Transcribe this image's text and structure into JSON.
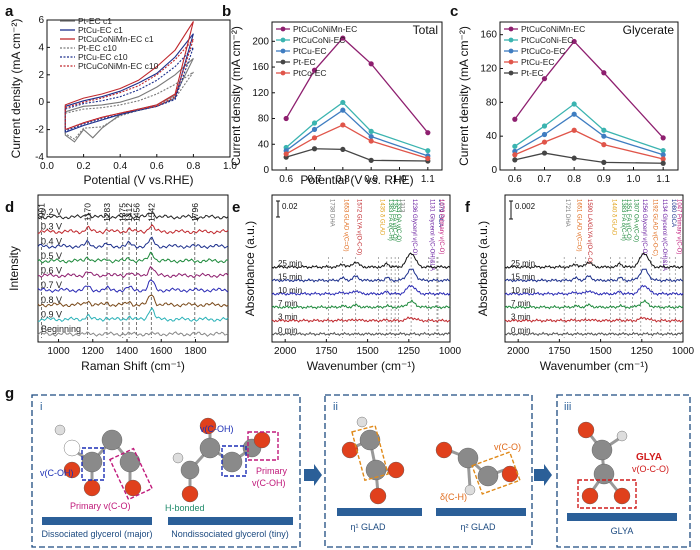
{
  "panel_letters": [
    "a",
    "b",
    "c",
    "d",
    "e",
    "f",
    "g"
  ],
  "chart_data": [
    {
      "panel": "a",
      "type": "line",
      "xlabel": "Potential (V vs.RHE)",
      "ylabel": "Current density (mA cm⁻²)",
      "xticks": [
        "0.0",
        "0.2",
        "0.4",
        "0.6",
        "0.8",
        "1.0"
      ],
      "yticks": [
        "-4",
        "-2",
        "0",
        "2",
        "4",
        "6"
      ],
      "xlim": [
        0.0,
        1.0
      ],
      "ylim": [
        -4,
        6
      ],
      "legend_position": "top-left",
      "series": [
        {
          "name": "Pt-EC c1",
          "color": "#7a7a7a",
          "dashed": false,
          "upper": [
            [
              0.1,
              -0.7
            ],
            [
              0.2,
              -0.3
            ],
            [
              0.3,
              -0.2
            ],
            [
              0.4,
              0.0
            ],
            [
              0.5,
              0.4
            ],
            [
              0.6,
              1.1
            ],
            [
              0.7,
              2.0
            ],
            [
              0.8,
              3.2
            ]
          ],
          "lower": [
            [
              0.1,
              -2.4
            ],
            [
              0.15,
              -2.9
            ],
            [
              0.2,
              -2.0
            ],
            [
              0.25,
              -2.6
            ],
            [
              0.3,
              -1.9
            ],
            [
              0.4,
              -0.9
            ],
            [
              0.5,
              -0.5
            ],
            [
              0.6,
              -0.2
            ],
            [
              0.7,
              0.5
            ],
            [
              0.8,
              3.2
            ]
          ]
        },
        {
          "name": "PtCu-EC c1",
          "color": "#1c2f8c",
          "dashed": false,
          "upper": [
            [
              0.1,
              -0.3
            ],
            [
              0.2,
              0.1
            ],
            [
              0.3,
              0.4
            ],
            [
              0.4,
              0.8
            ],
            [
              0.5,
              1.4
            ],
            [
              0.6,
              2.1
            ],
            [
              0.7,
              3.3
            ],
            [
              0.8,
              5.0
            ]
          ],
          "lower": [
            [
              0.1,
              -2.2
            ],
            [
              0.2,
              -1.7
            ],
            [
              0.3,
              -1.3
            ],
            [
              0.4,
              -0.9
            ],
            [
              0.5,
              -0.6
            ],
            [
              0.6,
              -0.3
            ],
            [
              0.7,
              0.3
            ],
            [
              0.8,
              5.0
            ]
          ]
        },
        {
          "name": "PtCuCoNiMn-EC c1",
          "color": "#c0282d",
          "dashed": false,
          "upper": [
            [
              0.1,
              -0.2
            ],
            [
              0.2,
              0.3
            ],
            [
              0.3,
              0.6
            ],
            [
              0.4,
              1.0
            ],
            [
              0.5,
              1.6
            ],
            [
              0.6,
              2.6
            ],
            [
              0.7,
              3.8
            ],
            [
              0.8,
              5.9
            ]
          ],
          "lower": [
            [
              0.1,
              -2.0
            ],
            [
              0.2,
              -1.5
            ],
            [
              0.3,
              -1.1
            ],
            [
              0.4,
              -0.8
            ],
            [
              0.5,
              -0.5
            ],
            [
              0.6,
              -0.2
            ],
            [
              0.7,
              0.6
            ],
            [
              0.8,
              5.9
            ]
          ]
        },
        {
          "name": "Pt-EC c10",
          "color": "#7a7a7a",
          "dashed": true,
          "upper": [
            [
              0.1,
              -0.8
            ],
            [
              0.2,
              -0.5
            ],
            [
              0.3,
              -0.4
            ],
            [
              0.4,
              -0.2
            ],
            [
              0.5,
              0.1
            ],
            [
              0.6,
              0.6
            ],
            [
              0.7,
              1.3
            ],
            [
              0.8,
              2.2
            ]
          ],
          "lower": [
            [
              0.1,
              -2.3
            ],
            [
              0.15,
              -2.7
            ],
            [
              0.2,
              -1.9
            ],
            [
              0.3,
              -1.8
            ],
            [
              0.4,
              -1.0
            ],
            [
              0.5,
              -0.6
            ],
            [
              0.6,
              -0.3
            ],
            [
              0.7,
              0.3
            ],
            [
              0.8,
              2.2
            ]
          ]
        },
        {
          "name": "PtCu-EC c10",
          "color": "#1c2f8c",
          "dashed": true,
          "upper": [
            [
              0.1,
              -0.5
            ],
            [
              0.2,
              -0.1
            ],
            [
              0.3,
              0.1
            ],
            [
              0.4,
              0.4
            ],
            [
              0.5,
              0.9
            ],
            [
              0.6,
              1.6
            ],
            [
              0.7,
              2.6
            ],
            [
              0.8,
              4.0
            ]
          ],
          "lower": [
            [
              0.1,
              -2.1
            ],
            [
              0.2,
              -1.6
            ],
            [
              0.3,
              -1.2
            ],
            [
              0.4,
              -0.9
            ],
            [
              0.5,
              -0.6
            ],
            [
              0.6,
              -0.3
            ],
            [
              0.7,
              0.2
            ],
            [
              0.8,
              4.0
            ]
          ]
        },
        {
          "name": "PtCuCoNiMn-EC c10",
          "color": "#c0282d",
          "dashed": true,
          "upper": [
            [
              0.1,
              -0.4
            ],
            [
              0.2,
              0.0
            ],
            [
              0.3,
              0.3
            ],
            [
              0.4,
              0.7
            ],
            [
              0.5,
              1.2
            ],
            [
              0.6,
              2.0
            ],
            [
              0.7,
              3.1
            ],
            [
              0.8,
              4.6
            ]
          ],
          "lower": [
            [
              0.1,
              -2.0
            ],
            [
              0.2,
              -1.5
            ],
            [
              0.3,
              -1.1
            ],
            [
              0.4,
              -0.8
            ],
            [
              0.5,
              -0.5
            ],
            [
              0.6,
              -0.3
            ],
            [
              0.7,
              0.4
            ],
            [
              0.8,
              4.6
            ]
          ]
        }
      ]
    },
    {
      "panel": "b",
      "type": "line",
      "annotation": "Total",
      "xlabel": "Potential (V vs. RHE)",
      "ylabel": "Current density (mA cm⁻²)",
      "x": [
        0.6,
        0.7,
        0.8,
        0.9,
        1.1
      ],
      "xticks": [
        "0.6",
        "0.7",
        "0.8",
        "0.9",
        "1.0",
        "1.1"
      ],
      "yticks": [
        "0",
        "40",
        "80",
        "120",
        "160",
        "200"
      ],
      "xlim": [
        0.55,
        1.15
      ],
      "ylim": [
        0,
        230
      ],
      "legend_position": "top-left",
      "series": [
        {
          "name": "PtCuCoNiMn-EC",
          "color": "#8e1f6f",
          "marker": "circle",
          "values": [
            80,
            155,
            205,
            165,
            58
          ]
        },
        {
          "name": "PtCuCoNi-EC",
          "color": "#3bb4b0",
          "marker": "circle",
          "values": [
            35,
            73,
            105,
            60,
            30
          ]
        },
        {
          "name": "PtCu-EC",
          "color": "#3f7dc1",
          "marker": "circle",
          "values": [
            30,
            63,
            93,
            52,
            22
          ]
        },
        {
          "name": "Pt-EC",
          "color": "#454545",
          "marker": "circle",
          "values": [
            20,
            33,
            32,
            15,
            14
          ]
        },
        {
          "name": "PtCo-EC",
          "color": "#e0554a",
          "marker": "circle",
          "values": [
            25,
            50,
            70,
            45,
            18
          ]
        }
      ]
    },
    {
      "panel": "c",
      "type": "line",
      "annotation": "Glycerate",
      "xlabel": "",
      "ylabel": "Current density (mA cm⁻²)",
      "x": [
        0.6,
        0.7,
        0.8,
        0.9,
        1.1
      ],
      "xticks": [
        "0.6",
        "0.7",
        "0.8",
        "0.9",
        "1.0",
        "1.1"
      ],
      "yticks": [
        "0",
        "40",
        "80",
        "120",
        "160"
      ],
      "xlim": [
        0.55,
        1.15
      ],
      "ylim": [
        0,
        175
      ],
      "legend_position": "top-left",
      "series": [
        {
          "name": "PtCuCoNiMn-EC",
          "color": "#8e1f6f",
          "marker": "circle",
          "values": [
            60,
            108,
            152,
            115,
            38
          ]
        },
        {
          "name": "PtCuCoNi-EC",
          "color": "#3bb4b0",
          "marker": "circle",
          "values": [
            28,
            52,
            78,
            47,
            23
          ]
        },
        {
          "name": "PtCuCo-EC",
          "color": "#3f7dc1",
          "marker": "circle",
          "values": [
            22,
            42,
            66,
            40,
            18
          ]
        },
        {
          "name": "PtCu-EC",
          "color": "#e0554a",
          "marker": "circle",
          "values": [
            18,
            33,
            47,
            30,
            13
          ]
        },
        {
          "name": "Pt-EC",
          "color": "#454545",
          "marker": "circle",
          "values": [
            12,
            20,
            14,
            9,
            8
          ]
        }
      ]
    },
    {
      "panel": "d",
      "type": "line",
      "xlabel": "Raman Shift (cm⁻¹)",
      "ylabel": "Intensity",
      "xticks": [
        "1000",
        "1200",
        "1400",
        "1600",
        "1800"
      ],
      "xlim": [
        880,
        1990
      ],
      "peak_labels": [
        {
          "x": 901,
          "label": "901"
        },
        {
          "x": 1170,
          "label": "1170"
        },
        {
          "x": 1283,
          "label": "1283"
        },
        {
          "x": 1375,
          "label": "1375"
        },
        {
          "x": 1412,
          "label": "1412"
        },
        {
          "x": 1456,
          "label": "1456"
        },
        {
          "x": 1542,
          "label": "1542"
        },
        {
          "x": 1796,
          "label": "1796"
        }
      ],
      "series": [
        {
          "name": "0.2 V",
          "color": "#222222"
        },
        {
          "name": "0.3 V",
          "color": "#c0282d"
        },
        {
          "name": "0.4 V",
          "color": "#1c2f8c"
        },
        {
          "name": "0.5 V",
          "color": "#1e8a3c"
        },
        {
          "name": "0.6 V",
          "color": "#8e1f6f"
        },
        {
          "name": "0.7 V",
          "color": "#2b2bb5"
        },
        {
          "name": "0.8 V",
          "color": "#7a4a1a"
        },
        {
          "name": "0.9 V",
          "color": "#2bb2b8"
        },
        {
          "name": "Beginning",
          "color": "#888888"
        }
      ]
    },
    {
      "panel": "e",
      "type": "line",
      "xlabel": "Wavenumber (cm⁻¹)",
      "ylabel": "Absorbance (a.u.)",
      "scale_bar": "0.02",
      "xticks": [
        "2000",
        "1750",
        "1500",
        "1250",
        "1000"
      ],
      "xlim": [
        2080,
        1000
      ],
      "peak_labels": [
        {
          "x": 1738,
          "label": "1738 DHA",
          "color": "#777777"
        },
        {
          "x": 1653,
          "label": "1653 GLAD ν(C=O)",
          "color": "#e06a1a"
        },
        {
          "x": 1572,
          "label": "1572 GLYA ν(O-C-O)",
          "color": "#c0282d"
        },
        {
          "x": 1435,
          "label": "1435 δ GLAD",
          "color": "#e0a21a"
        },
        {
          "x": 1383,
          "label": "1383 FA δ(C-H)",
          "color": "#1e8a3c"
        },
        {
          "x": 1357,
          "label": "1357 FA ν(C-O)",
          "color": "#1e8a3c"
        },
        {
          "x": 1333,
          "label": "1333 OA ν(C-O)",
          "color": "#1e8a3c"
        },
        {
          "x": 1313,
          "label": "1313",
          "color": "#777777"
        },
        {
          "x": 1236,
          "label": "1236 Glyceryl ν(C-O)",
          "color": "#6a1fa0"
        },
        {
          "x": 1131,
          "label": "1131 Glycerol ν(C-OH)&LA",
          "color": "#6a1fa0"
        },
        {
          "x": 1079,
          "label": "1079 GCA",
          "color": "#1c2f8c"
        },
        {
          "x": 1073,
          "label": "1073 Primary ν(C-O)",
          "color": "#c0197a"
        }
      ],
      "series": [
        {
          "name": "25 min",
          "color": "#111111"
        },
        {
          "name": "15 min",
          "color": "#1c2f8c"
        },
        {
          "name": "10 min",
          "color": "#2b2bb5"
        },
        {
          "name": "7 min",
          "color": "#1e8a3c"
        },
        {
          "name": "3 min",
          "color": "#c0282d"
        },
        {
          "name": "0 min",
          "color": "#555555"
        }
      ]
    },
    {
      "panel": "f",
      "type": "line",
      "xlabel": "Wavenumber (cm⁻¹)",
      "ylabel": "Absorbance (a.u.)",
      "scale_bar": "0.002",
      "xticks": [
        "2000",
        "1750",
        "1500",
        "1250",
        "1000"
      ],
      "xlim": [
        2080,
        1000
      ],
      "peak_labels": [
        {
          "x": 1721,
          "label": "1721 DHA",
          "color": "#777777"
        },
        {
          "x": 1651,
          "label": "1651 GLAD ν(C=O)",
          "color": "#e06a1a"
        },
        {
          "x": 1590,
          "label": "1590 LA/GLYA ν(O-C-O)",
          "color": "#c0282d"
        },
        {
          "x": 1440,
          "label": "1440 δ GLAD",
          "color": "#e0a21a"
        },
        {
          "x": 1383,
          "label": "1383 FA δ(C-H)",
          "color": "#1e8a3c"
        },
        {
          "x": 1351,
          "label": "1351 FA ν(C-O)",
          "color": "#1e8a3c"
        },
        {
          "x": 1307,
          "label": "1307 OA ν(C-O)",
          "color": "#1e8a3c"
        },
        {
          "x": 1256,
          "label": "1256 Glyceryl ν(C-O)",
          "color": "#6a1fa0"
        },
        {
          "x": 1192,
          "label": "1192 GLAD ν(C-O-C)",
          "color": "#e06a1a"
        },
        {
          "x": 1134,
          "label": "1134 Glycerol ν(C-OH)&LA",
          "color": "#6a1fa0"
        },
        {
          "x": 1080,
          "label": "1080 GCA",
          "color": "#1c2f8c"
        },
        {
          "x": 1047,
          "label": "1047 Primary ν(C-O)",
          "color": "#c0197a"
        }
      ],
      "series": [
        {
          "name": "25 min",
          "color": "#111111"
        },
        {
          "name": "15 min",
          "color": "#1c2f8c"
        },
        {
          "name": "10 min",
          "color": "#2b2bb5"
        },
        {
          "name": "7 min",
          "color": "#1e8a3c"
        },
        {
          "name": "3 min",
          "color": "#c0282d"
        },
        {
          "name": "0 min",
          "color": "#555555"
        }
      ]
    }
  ],
  "schematic": {
    "sub_i": {
      "numeral": "i",
      "labels": {
        "vcoh_left": "v(C-OH)",
        "primary_vco": "Primary v(C-O)",
        "vcoh_top": "v(C-OH)",
        "h_bonded": "H-bonded",
        "primary_vcoh": "Primary v(C-OH)",
        "caption_left": "Dissociated glycerol (major)",
        "caption_right": "Nondissociated glycerol (tiny)"
      }
    },
    "sub_ii": {
      "numeral": "ii",
      "labels": {
        "vco": "v(C-O)",
        "dch": "δ(C-H)",
        "caption_left": "η¹ GLAD",
        "caption_right": "η² GLAD"
      }
    },
    "sub_iii": {
      "numeral": "iii",
      "labels": {
        "glya": "GLYA",
        "voco": "v(O-C-O)",
        "caption": "GLYA"
      }
    }
  }
}
